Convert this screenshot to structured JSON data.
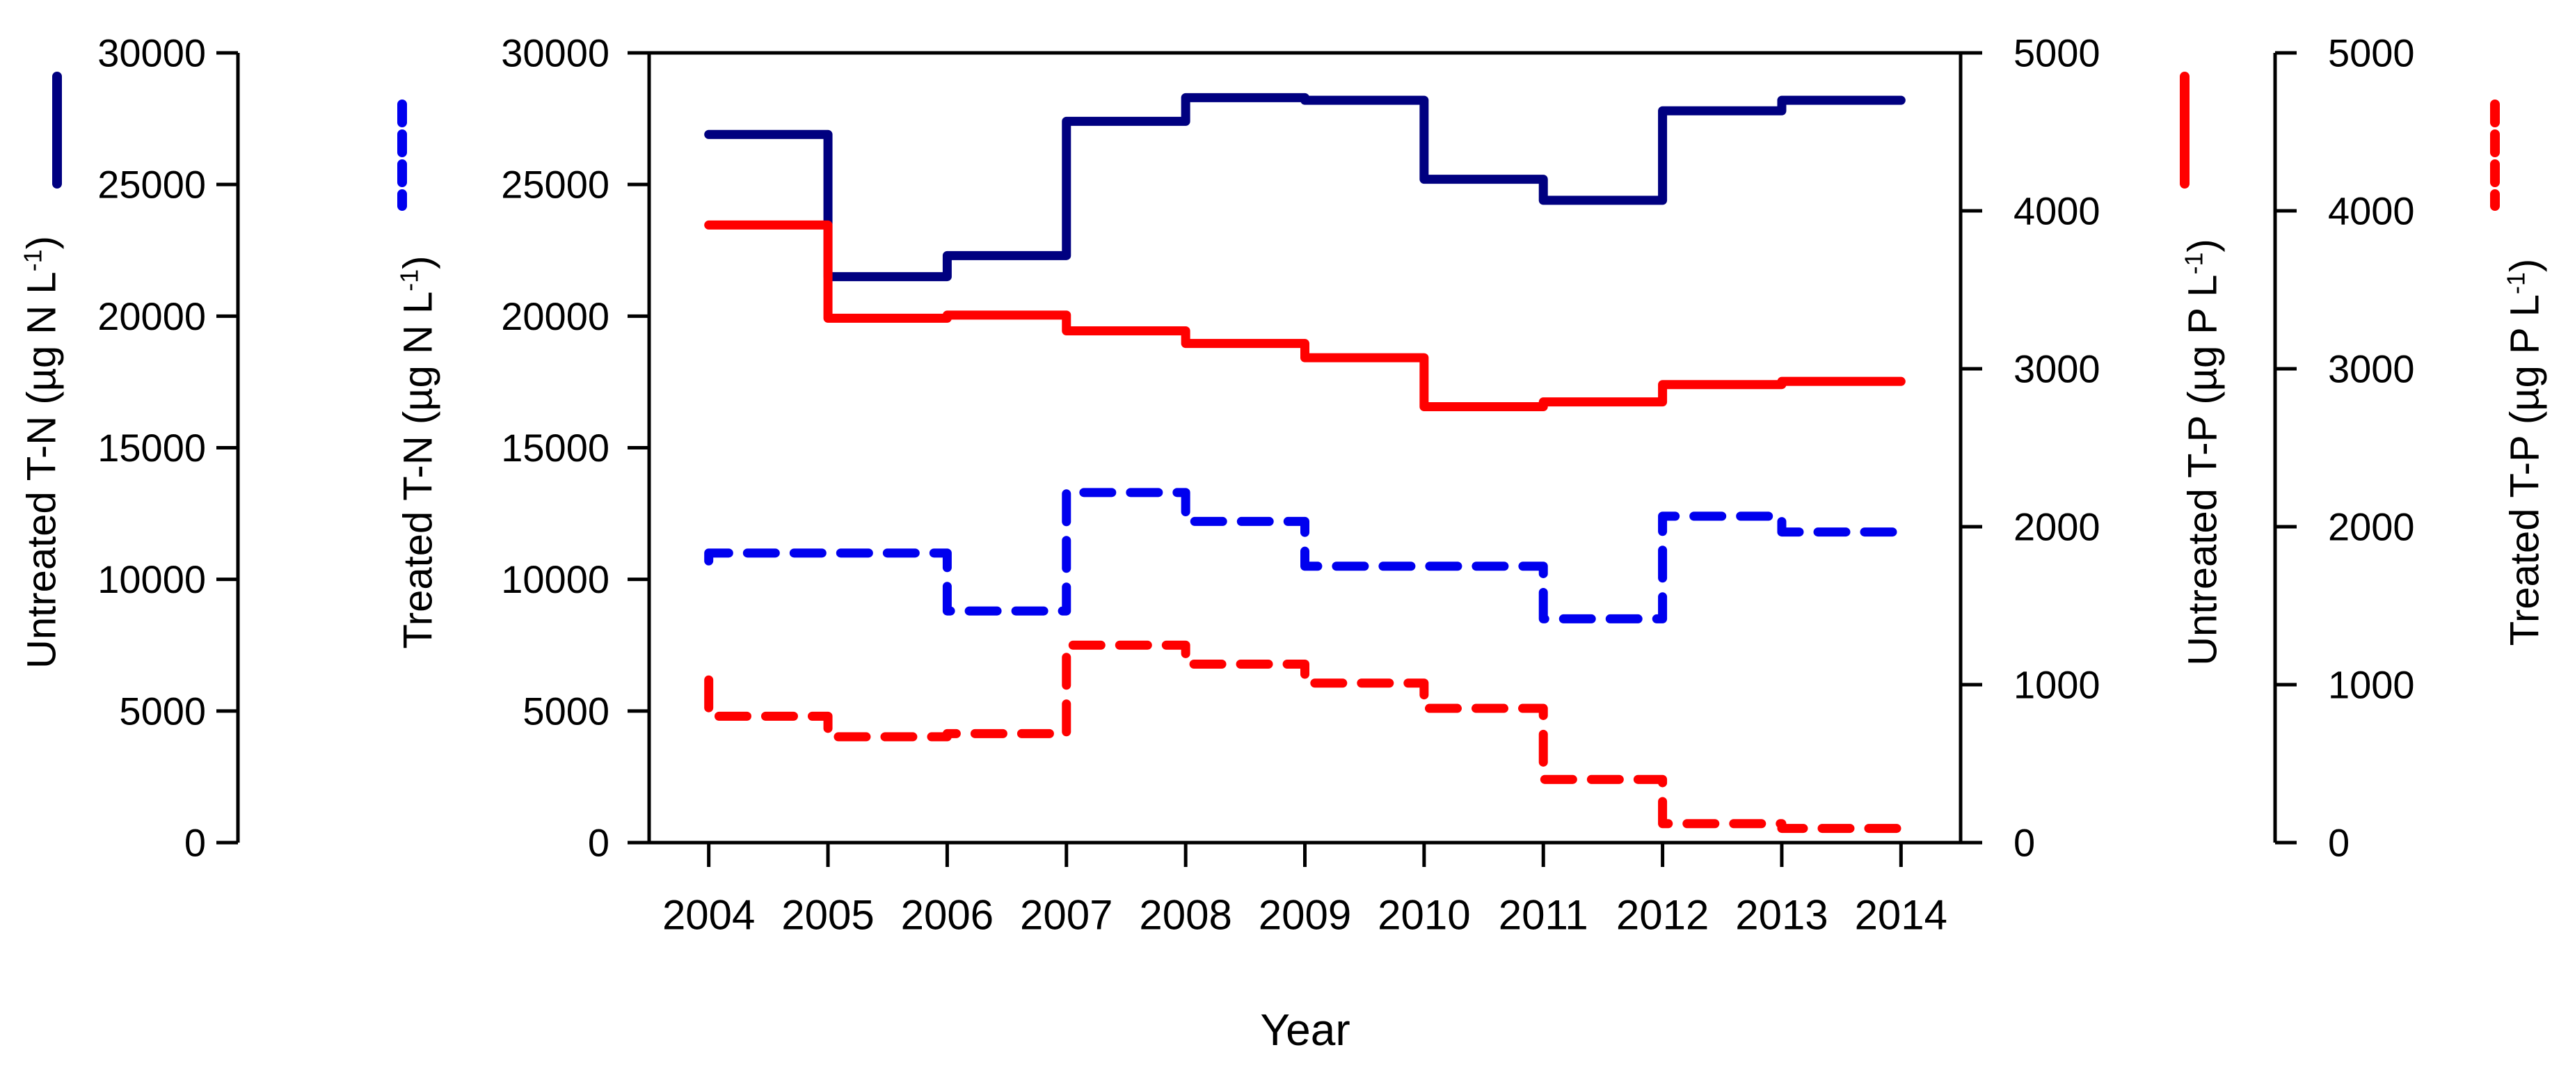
{
  "chart_data": {
    "type": "line",
    "subtype": "step-after",
    "title": "",
    "xlabel": "Year",
    "x": [
      2004,
      2005,
      2006,
      2007,
      2008,
      2009,
      2010,
      2011,
      2012,
      2013,
      2014
    ],
    "x_tick_labels": [
      "2004",
      "2005",
      "2006",
      "2007",
      "2008",
      "2009",
      "2010",
      "2011",
      "2012",
      "2013",
      "2014"
    ],
    "x_range_drawn": [
      2003.5,
      2014.5
    ],
    "grid": false,
    "left_axis": {
      "label": "T-N (ug N L-1)",
      "range": [
        0,
        30000
      ],
      "ticks": [
        0,
        5000,
        10000,
        15000,
        20000,
        25000,
        30000
      ],
      "tick_labels": [
        "0",
        "5000",
        "10000",
        "15000",
        "20000",
        "25000",
        "30000"
      ]
    },
    "right_axis": {
      "label": "T-P (ug P L-1)",
      "range": [
        0,
        5000
      ],
      "ticks": [
        0,
        1000,
        2000,
        3000,
        4000,
        5000
      ],
      "tick_labels": [
        "0",
        "1000",
        "2000",
        "3000",
        "4000",
        "5000"
      ]
    },
    "series": [
      {
        "name": "Untreated T-N",
        "axis": "left",
        "style": "solid",
        "color": "#000080",
        "values": [
          26900,
          21500,
          22300,
          27400,
          28300,
          28200,
          25200,
          24400,
          27800,
          28200,
          28200
        ]
      },
      {
        "name": "Treated T-N",
        "axis": "left",
        "style": "dashed",
        "color": "#0000ee",
        "start_value": 10700,
        "values": [
          11000,
          11000,
          8800,
          13300,
          12200,
          10500,
          10500,
          8500,
          12400,
          11800,
          11800
        ]
      },
      {
        "name": "Untreated T-P",
        "axis": "right",
        "style": "solid",
        "color": "#ff0000",
        "values": [
          3910,
          3320,
          3340,
          3240,
          3160,
          3070,
          2760,
          2790,
          2900,
          2920,
          2920
        ]
      },
      {
        "name": "Treated T-P",
        "axis": "right",
        "style": "dashed",
        "color": "#ff0000",
        "start_value": 1030,
        "values": [
          800,
          670,
          690,
          1250,
          1130,
          1010,
          850,
          400,
          120,
          90,
          90
        ]
      }
    ],
    "legend_position": "vertical line samples above rotated axis titles"
  },
  "axis_titles": {
    "left_outer": {
      "main": "Untreated T-N (µg N L",
      "sup": "-1",
      "close": ")"
    },
    "left_inner": {
      "main": "Treated T-N (µg N L",
      "sup": "-1",
      "close": ")"
    },
    "right_inner": {
      "main": "Untreated T-P (µg P L",
      "sup": "-1",
      "close": ")"
    },
    "right_outer": {
      "main": "Treated T-P (µg P L",
      "sup": "-1",
      "close": ")"
    }
  },
  "x_title": "Year"
}
